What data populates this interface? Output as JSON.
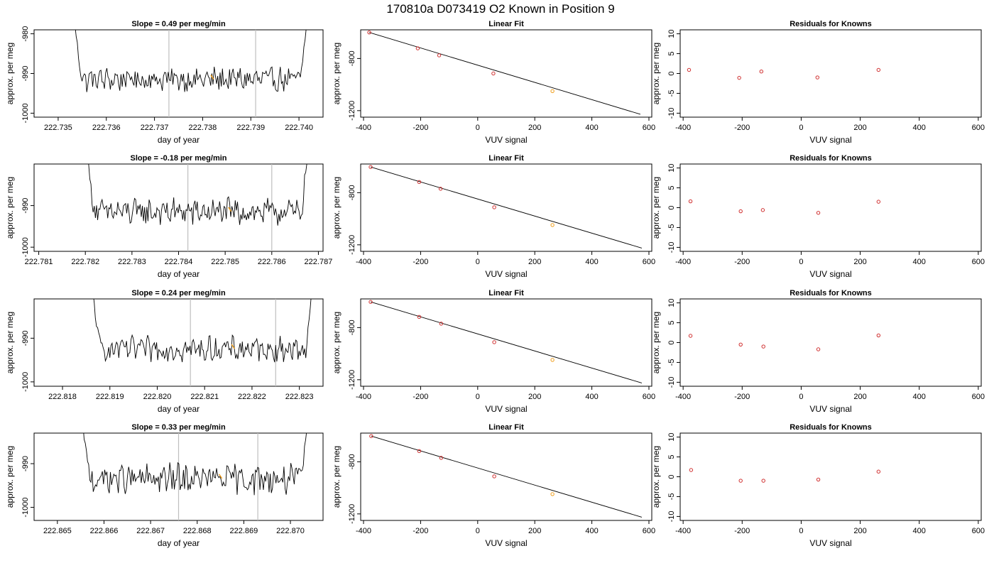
{
  "title": "170810a     D073419   O2 Known in Position  9",
  "colors": {
    "trace": "#000000",
    "axis": "#000000",
    "vline": "#bfbfbf",
    "marker_red": "#d03030",
    "marker_orange": "#f0a020"
  },
  "chart_data": [
    {
      "type": "line",
      "row": 0,
      "title": "Slope =  0.49  per meg/min",
      "xlabel": "day of year",
      "ylabel": "approx. per meg",
      "xlim": [
        222.7345,
        222.7405
      ],
      "ylim": [
        -1001,
        -979
      ],
      "xticks": [
        "222.735",
        "222.736",
        "222.737",
        "222.738",
        "222.739",
        "222.740"
      ],
      "yticks": [
        "-980",
        "-990",
        "-1000"
      ],
      "vlines": [
        222.7373,
        222.7391
      ],
      "x_start": 222.7353,
      "x_end": 222.7402,
      "baseline": -991.5,
      "noise": 1.6,
      "highlight_x": 222.7382
    },
    {
      "type": "line",
      "row": 1,
      "title": "Slope =  -0.18  per meg/min",
      "xlabel": "day of year",
      "ylabel": "approx. per meg",
      "xlim": [
        222.7809,
        222.7871
      ],
      "ylim": [
        -1001,
        -980
      ],
      "xticks": [
        "222.781",
        "222.782",
        "222.783",
        "222.784",
        "222.785",
        "222.786",
        "222.787"
      ],
      "yticks": [
        "-990",
        "-1000"
      ],
      "vlines": [
        222.7842,
        222.786
      ],
      "x_start": 222.782,
      "x_end": 222.7868,
      "baseline": -991.5,
      "noise": 1.7,
      "highlight_x": 222.7851
    },
    {
      "type": "line",
      "row": 2,
      "title": "Slope =  0.24  per meg/min",
      "xlabel": "day of year",
      "ylabel": "approx. per meg",
      "xlim": [
        222.8174,
        222.8235
      ],
      "ylim": [
        -1001,
        -981
      ],
      "xticks": [
        "222.818",
        "222.819",
        "222.820",
        "222.821",
        "222.822",
        "222.823"
      ],
      "yticks": [
        "-990",
        "-1000"
      ],
      "vlines": [
        222.8207,
        222.8225
      ],
      "x_start": 222.8186,
      "x_end": 222.8233,
      "baseline": -992.5,
      "noise": 1.5,
      "highlight_x": 222.8216
    },
    {
      "type": "line",
      "row": 3,
      "title": "Slope =  0.33  per meg/min",
      "xlabel": "day of year",
      "ylabel": "approx. per meg",
      "xlim": [
        222.8645,
        222.8707
      ],
      "ylim": [
        -1003,
        -983
      ],
      "xticks": [
        "222.865",
        "222.866",
        "222.867",
        "222.868",
        "222.869",
        "222.870"
      ],
      "yticks": [
        "-990",
        "-1000"
      ],
      "vlines": [
        222.8676,
        222.8693
      ],
      "x_start": 222.8655,
      "x_end": 222.8704,
      "baseline": -993.5,
      "noise": 1.8,
      "highlight_x": 222.8685
    },
    {
      "type": "scatter",
      "row": 0,
      "title": "Linear Fit",
      "xlabel": "VUV signal",
      "ylabel": "approx. per meg",
      "xlim": [
        -410,
        610
      ],
      "ylim": [
        -1250,
        -580
      ],
      "xticks": [
        "-400",
        "-200",
        "0",
        "200",
        "400",
        "600"
      ],
      "yticks": [
        "-800",
        "-1200"
      ],
      "points": [
        [
          -380,
          -600
        ],
        [
          -210,
          -722
        ],
        [
          -135,
          -776
        ],
        [
          55,
          -915
        ],
        [
          262,
          -1050
        ]
      ],
      "highlight_index": 4,
      "fit_line": [
        [
          -380,
          -600
        ],
        [
          570,
          -1228
        ]
      ]
    },
    {
      "type": "scatter",
      "row": 1,
      "title": "Linear Fit",
      "xlabel": "VUV signal",
      "ylabel": "approx. per meg",
      "xlim": [
        -410,
        610
      ],
      "ylim": [
        -1250,
        -580
      ],
      "xticks": [
        "-400",
        "-200",
        "0",
        "200",
        "400",
        "600"
      ],
      "yticks": [
        "-800",
        "-1200"
      ],
      "points": [
        [
          -375,
          -603
        ],
        [
          -205,
          -718
        ],
        [
          -130,
          -770
        ],
        [
          58,
          -912
        ],
        [
          262,
          -1048
        ]
      ],
      "highlight_index": 4,
      "fit_line": [
        [
          -375,
          -603
        ],
        [
          575,
          -1225
        ]
      ]
    },
    {
      "type": "scatter",
      "row": 2,
      "title": "Linear Fit",
      "xlabel": "VUV signal",
      "ylabel": "approx. per meg",
      "xlim": [
        -410,
        610
      ],
      "ylim": [
        -1250,
        -580
      ],
      "xticks": [
        "-400",
        "-200",
        "0",
        "200",
        "400",
        "600"
      ],
      "yticks": [
        "-800",
        "-1200"
      ],
      "points": [
        [
          -375,
          -603
        ],
        [
          -205,
          -718
        ],
        [
          -128,
          -770
        ],
        [
          58,
          -912
        ],
        [
          262,
          -1048
        ]
      ],
      "highlight_index": 4,
      "fit_line": [
        [
          -375,
          -603
        ],
        [
          575,
          -1225
        ]
      ]
    },
    {
      "type": "scatter",
      "row": 3,
      "title": "Linear Fit",
      "xlabel": "VUV signal",
      "ylabel": "approx. per meg",
      "xlim": [
        -410,
        610
      ],
      "ylim": [
        -1250,
        -580
      ],
      "xticks": [
        "-400",
        "-200",
        "0",
        "200",
        "400",
        "600"
      ],
      "yticks": [
        "-800",
        "-1200"
      ],
      "points": [
        [
          -373,
          -603
        ],
        [
          -205,
          -718
        ],
        [
          -128,
          -770
        ],
        [
          58,
          -912
        ],
        [
          262,
          -1048
        ]
      ],
      "highlight_index": 4,
      "fit_line": [
        [
          -373,
          -603
        ],
        [
          575,
          -1225
        ]
      ]
    },
    {
      "type": "scatter",
      "row": 0,
      "title": "Residuals for Knowns",
      "xlabel": "VUV signal",
      "ylabel": "approx. per meg",
      "xlim": [
        -410,
        610
      ],
      "ylim": [
        -11,
        11
      ],
      "xticks": [
        "-400",
        "-200",
        "0",
        "200",
        "400",
        "600"
      ],
      "yticks": [
        "10",
        "5",
        "0",
        "-5",
        "-10"
      ],
      "points": [
        [
          -380,
          0.9
        ],
        [
          -210,
          -1.1
        ],
        [
          -135,
          0.5
        ],
        [
          55,
          -1.0
        ],
        [
          262,
          0.9
        ]
      ]
    },
    {
      "type": "scatter",
      "row": 1,
      "title": "Residuals for Knowns",
      "xlabel": "VUV signal",
      "ylabel": "approx. per meg",
      "xlim": [
        -410,
        610
      ],
      "ylim": [
        -11,
        11
      ],
      "xticks": [
        "-400",
        "-200",
        "0",
        "200",
        "400",
        "600"
      ],
      "yticks": [
        "10",
        "5",
        "0",
        "-5",
        "-10"
      ],
      "points": [
        [
          -375,
          1.6
        ],
        [
          -205,
          -0.9
        ],
        [
          -130,
          -0.6
        ],
        [
          58,
          -1.3
        ],
        [
          262,
          1.5
        ]
      ]
    },
    {
      "type": "scatter",
      "row": 2,
      "title": "Residuals for Knowns",
      "xlabel": "VUV signal",
      "ylabel": "approx. per meg",
      "xlim": [
        -410,
        610
      ],
      "ylim": [
        -11,
        11
      ],
      "xticks": [
        "-400",
        "-200",
        "0",
        "200",
        "400",
        "600"
      ],
      "yticks": [
        "10",
        "5",
        "0",
        "-5",
        "-10"
      ],
      "points": [
        [
          -375,
          1.7
        ],
        [
          -205,
          -0.5
        ],
        [
          -128,
          -1.0
        ],
        [
          58,
          -1.7
        ],
        [
          262,
          1.8
        ]
      ]
    },
    {
      "type": "scatter",
      "row": 3,
      "title": "Residuals for Knowns",
      "xlabel": "VUV signal",
      "ylabel": "approx. per meg",
      "xlim": [
        -410,
        610
      ],
      "ylim": [
        -11,
        11
      ],
      "xticks": [
        "-400",
        "-200",
        "0",
        "200",
        "400",
        "600"
      ],
      "yticks": [
        "10",
        "5",
        "0",
        "-5",
        "-10"
      ],
      "points": [
        [
          -373,
          1.7
        ],
        [
          -205,
          -1.0
        ],
        [
          -128,
          -1.0
        ],
        [
          58,
          -0.7
        ],
        [
          262,
          1.3
        ]
      ]
    }
  ]
}
